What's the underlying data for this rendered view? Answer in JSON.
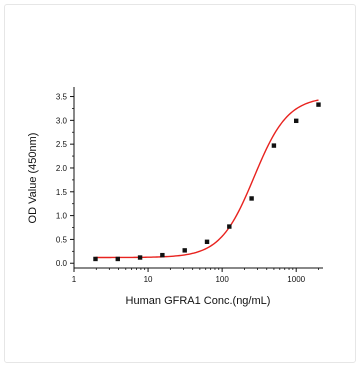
{
  "chart_data": {
    "type": "scatter",
    "title": "",
    "xlabel": "Human GFRA1 Conc.(ng/mL)",
    "ylabel": "OD Value (450nm)",
    "xscale": "log",
    "xlim": [
      1,
      2300
    ],
    "ylim": [
      -0.1,
      3.7
    ],
    "x_ticks": [
      1,
      10,
      100,
      1000
    ],
    "x_tick_labels": [
      "1",
      "10",
      "100",
      "1000"
    ],
    "y_ticks": [
      0.0,
      0.5,
      1.0,
      1.5,
      2.0,
      2.5,
      3.0,
      3.5
    ],
    "y_tick_labels": [
      "0.0",
      "0.5",
      "1.0",
      "1.5",
      "2.0",
      "2.5",
      "3.0",
      "3.5"
    ],
    "grid": false,
    "marker_color": "#111111",
    "fit_color": "#e8231f",
    "series": [
      {
        "x": [
          1.95,
          3.9,
          7.8,
          15.6,
          31.25,
          62.5,
          125,
          250,
          500,
          1000,
          2000
        ],
        "y": [
          0.09,
          0.09,
          0.12,
          0.17,
          0.27,
          0.45,
          0.77,
          1.36,
          2.47,
          2.99,
          3.33
        ]
      }
    ],
    "fit": {
      "model": "4PL",
      "bottom": 0.12,
      "top": 3.5,
      "ec50": 270,
      "hill": 1.9
    }
  }
}
